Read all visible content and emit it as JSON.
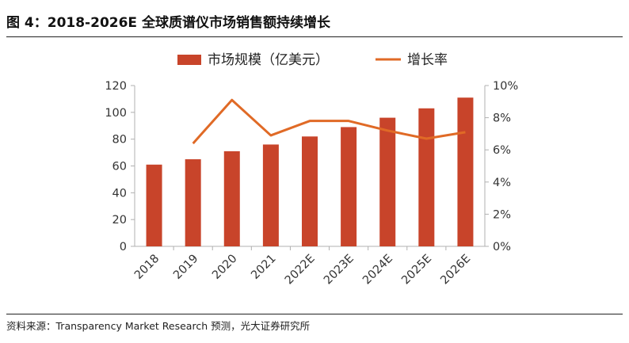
{
  "figure": {
    "title": "图 4：2018-2026E 全球质谱仪市场销售额持续增长",
    "source": "资料来源：Transparency Market Research 预测，光大证券研究所"
  },
  "colors": {
    "bar": "#c8442a",
    "line": "#e06a26",
    "axis": "#b0b0b0"
  },
  "chart_data": {
    "type": "bar",
    "categories": [
      "2018",
      "2019",
      "2020",
      "2021",
      "2022E",
      "2023E",
      "2024E",
      "2025E",
      "2026E"
    ],
    "series": [
      {
        "name": "市场规模（亿美元）",
        "type": "bar",
        "axis": "left",
        "values": [
          61,
          65,
          71,
          76,
          82,
          89,
          96,
          103,
          111
        ]
      },
      {
        "name": "增长率",
        "type": "line",
        "axis": "right",
        "values": [
          null,
          6.4,
          9.1,
          6.9,
          7.8,
          7.8,
          7.2,
          6.7,
          7.1
        ]
      }
    ],
    "yaxis_left": {
      "range": [
        0,
        120
      ],
      "ticks": [
        "0",
        "20",
        "40",
        "60",
        "80",
        "100",
        "120"
      ]
    },
    "yaxis_right": {
      "range": [
        0,
        10
      ],
      "ticks": [
        "0%",
        "2%",
        "4%",
        "6%",
        "8%",
        "10%"
      ]
    },
    "grid": false,
    "legend": {
      "position": "top"
    }
  }
}
